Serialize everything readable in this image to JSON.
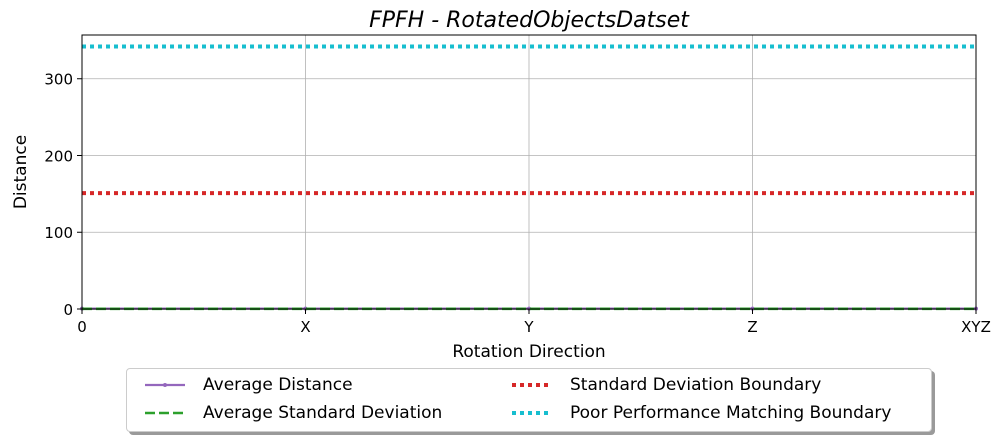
{
  "chart_data": {
    "type": "line",
    "title": "FPFH - RotatedObjectsDatset",
    "xlabel": "Rotation Direction",
    "ylabel": "Distance",
    "categories": [
      "0",
      "X",
      "Y",
      "Z",
      "XYZ"
    ],
    "ylim": [
      0,
      357
    ],
    "yticks": [
      0,
      100,
      200,
      300
    ],
    "grid": true,
    "legend_placement": "bottom-center",
    "series": [
      {
        "name": "Average Distance",
        "values": [
          0.5,
          0.5,
          0.5,
          0.5,
          0.5
        ],
        "color": "#9467bd",
        "style": "solid-marker"
      },
      {
        "name": "Average Standard Deviation",
        "values": [
          0.3,
          0.3,
          0.3,
          0.3,
          0.3
        ],
        "color": "#2ca02c",
        "style": "dashed"
      },
      {
        "name": "Standard Deviation Boundary",
        "values": [
          151,
          151,
          151,
          151,
          151
        ],
        "color": "#d62728",
        "style": "dotted"
      },
      {
        "name": "Poor Performance Matching Boundary",
        "values": [
          342,
          342,
          342,
          342,
          342
        ],
        "color": "#17becf",
        "style": "dotted"
      }
    ]
  }
}
